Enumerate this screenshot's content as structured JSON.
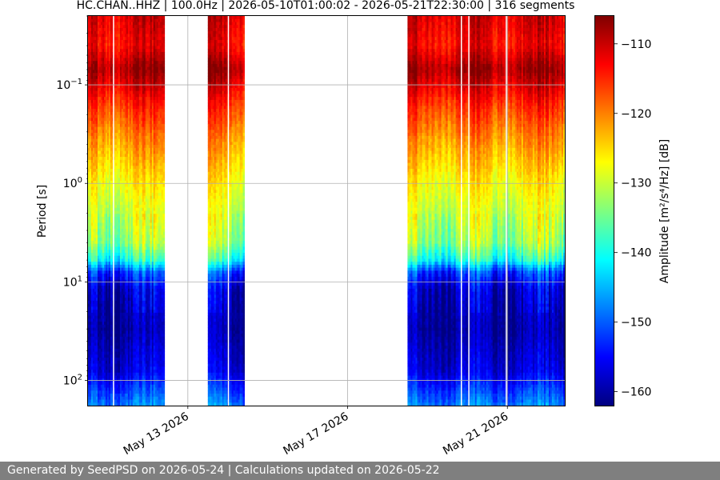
{
  "chart_data": {
    "type": "heatmap",
    "title": "HC.CHAN..HHZ | 100.0Hz | 2026-05-10T01:00:02 - 2026-05-21T22:30:00 | 316 segments",
    "xlabel": "",
    "ylabel": "Period [s]",
    "colorbar_label": "Amplitude [m²/s⁴/Hz] [dB]",
    "x_range": [
      "2026-05-10T12:00",
      "2026-05-22T10:30"
    ],
    "x_ticks": [
      {
        "date": "2026-05-13",
        "label": "May 13 2026"
      },
      {
        "date": "2026-05-17",
        "label": "May 17 2026"
      },
      {
        "date": "2026-05-21",
        "label": "May 21 2026"
      }
    ],
    "y_scale": "log",
    "y_inverted": true,
    "y_range": [
      0.02,
      180
    ],
    "y_ticks": [
      {
        "value": 0.1,
        "label": "10",
        "exp": "−1"
      },
      {
        "value": 1,
        "label": "10",
        "exp": "0"
      },
      {
        "value": 10,
        "label": "10",
        "exp": "1"
      },
      {
        "value": 100,
        "label": "10",
        "exp": "2"
      }
    ],
    "colorbar_range": [
      -162,
      -106
    ],
    "colorbar_ticks": [
      -110,
      -120,
      -130,
      -140,
      -150,
      -160
    ],
    "colormap": "jet",
    "grid": true,
    "data_segments": [
      {
        "start": "2026-05-10T12:00",
        "end": "2026-05-12T10:00"
      },
      {
        "start": "2026-05-13T12:00",
        "end": "2026-05-14T10:00"
      },
      {
        "start": "2026-05-18T12:00",
        "end": "2026-05-22T10:30"
      }
    ],
    "data_gaps": [
      {
        "start": "2026-05-11T03:00",
        "end": "2026-05-11T03:40"
      },
      {
        "start": "2026-05-14T00:00",
        "end": "2026-05-14T00:40"
      },
      {
        "start": "2026-05-19T20:00",
        "end": "2026-05-19T20:40"
      },
      {
        "start": "2026-05-20T00:30",
        "end": "2026-05-20T01:10"
      },
      {
        "start": "2026-05-20T23:00",
        "end": "2026-05-20T23:40"
      }
    ],
    "psd_profile_db": [
      {
        "period": 0.02,
        "db": -111
      },
      {
        "period": 0.04,
        "db": -113
      },
      {
        "period": 0.07,
        "db": -108
      },
      {
        "period": 0.15,
        "db": -115
      },
      {
        "period": 0.35,
        "db": -121
      },
      {
        "period": 1,
        "db": -127
      },
      {
        "period": 2.5,
        "db": -131
      },
      {
        "period": 4,
        "db": -133
      },
      {
        "period": 6,
        "db": -140
      },
      {
        "period": 8,
        "db": -152
      },
      {
        "period": 12,
        "db": -158
      },
      {
        "period": 30,
        "db": -160
      },
      {
        "period": 80,
        "db": -157
      },
      {
        "period": 180,
        "db": -148
      }
    ]
  },
  "footer": {
    "text": "Generated by SeedPSD on 2026-05-24 | Calculations updated on 2026-05-22"
  }
}
